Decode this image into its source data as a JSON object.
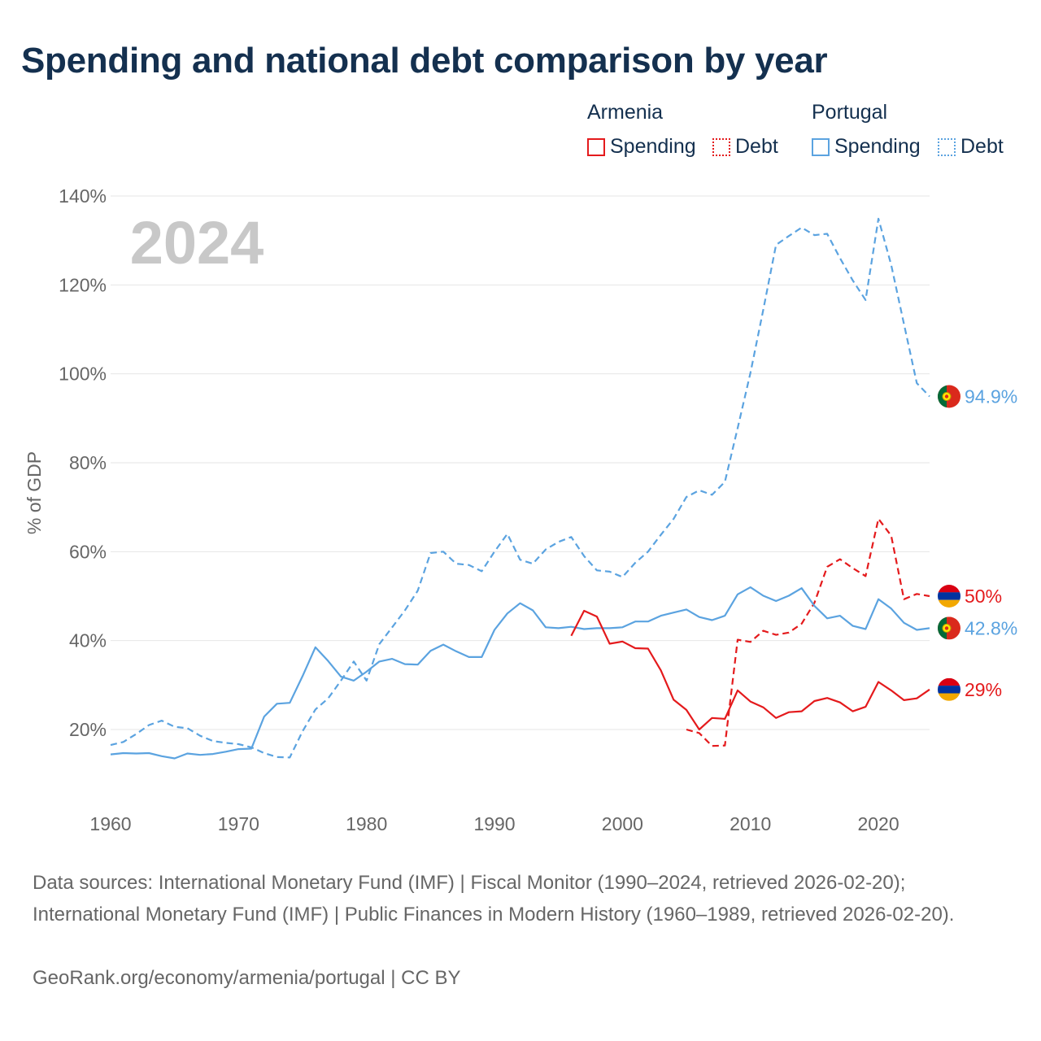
{
  "title": "Spending and national debt comparison by year",
  "legend": {
    "groups": [
      {
        "country": "Armenia",
        "items": [
          {
            "label": "Spending",
            "style": "solid"
          },
          {
            "label": "Debt",
            "style": "dotted"
          }
        ],
        "color": "#e41a1c"
      },
      {
        "country": "Portugal",
        "items": [
          {
            "label": "Spending",
            "style": "solid"
          },
          {
            "label": "Debt",
            "style": "dotted"
          }
        ],
        "color": "#5ba3e0"
      }
    ]
  },
  "year_watermark": "2024",
  "colors": {
    "armenia": "#e41a1c",
    "portugal": "#5ba3e0",
    "grid": "#e6e6e6",
    "axis_text": "#666666",
    "title": "#14304f",
    "watermark": "#c8c8c8"
  },
  "end_labels": {
    "portugal_debt": "94.9%",
    "armenia_debt": "50%",
    "portugal_spending": "42.8%",
    "armenia_spending": "29%"
  },
  "sources": "Data sources: International Monetary Fund (IMF) | Fiscal Monitor (1990–2024, retrieved 2026-02-20); International Monetary Fund (IMF) | Public Finances in Modern History (1960–1989, retrieved 2026-02-20).",
  "footer": "GeoRank.org/economy/armenia/portugal | CC BY",
  "chart_data": {
    "type": "line",
    "title": "Spending and national debt comparison by year",
    "xlabel": "",
    "ylabel": "% of GDP",
    "xlim": [
      1960,
      2024
    ],
    "ylim": [
      6,
      140
    ],
    "x_ticks": [
      1960,
      1970,
      1980,
      1990,
      2000,
      2010,
      2020
    ],
    "x_tick_labels": [
      "1960",
      "1970",
      "1980",
      "1990",
      "2000",
      "2010",
      "2020"
    ],
    "y_ticks": [
      20,
      40,
      60,
      80,
      100,
      120,
      140
    ],
    "y_tick_labels": [
      "20%",
      "40%",
      "60%",
      "80%",
      "100%",
      "120%",
      "140%"
    ],
    "series": [
      {
        "name": "Portugal Debt",
        "country": "Portugal",
        "metric": "Debt",
        "style": "dashed",
        "color": "#5ba3e0",
        "x": [
          1960,
          1961,
          1962,
          1963,
          1964,
          1965,
          1966,
          1967,
          1968,
          1969,
          1970,
          1971,
          1972,
          1973,
          1974,
          1975,
          1976,
          1977,
          1978,
          1979,
          1980,
          1981,
          1982,
          1983,
          1984,
          1985,
          1986,
          1987,
          1988,
          1989,
          1990,
          1991,
          1992,
          1993,
          1994,
          1995,
          1996,
          1997,
          1998,
          1999,
          2000,
          2001,
          2002,
          2003,
          2004,
          2005,
          2006,
          2007,
          2008,
          2009,
          2010,
          2011,
          2012,
          2013,
          2014,
          2015,
          2016,
          2017,
          2018,
          2019,
          2020,
          2021,
          2022,
          2023,
          2024
        ],
        "values": [
          16.5,
          17.2,
          19,
          21,
          22,
          20.6,
          20.3,
          18.6,
          17.4,
          17,
          16.7,
          16,
          14.7,
          13.8,
          13.7,
          19.6,
          24.5,
          27,
          31,
          35.3,
          31,
          39.2,
          43,
          46.8,
          51.2,
          59.7,
          60,
          57.3,
          57,
          55.6,
          60,
          64,
          58.2,
          57.3,
          60.5,
          62.2,
          63.3,
          59,
          55.8,
          55.5,
          54.3,
          57.5,
          60,
          63.8,
          67.4,
          72.3,
          73.8,
          72.8,
          75.7,
          87.8,
          100.2,
          114.4,
          129,
          131,
          132.9,
          131.2,
          131.5,
          126,
          121,
          116.6,
          134.9,
          124.5,
          111.2,
          97.9,
          94.9
        ]
      },
      {
        "name": "Armenia Debt",
        "country": "Armenia",
        "metric": "Debt",
        "style": "dashed",
        "color": "#e41a1c",
        "x": [
          2005,
          2006,
          2007,
          2008,
          2009,
          2010,
          2011,
          2012,
          2013,
          2014,
          2015,
          2016,
          2017,
          2018,
          2019,
          2020,
          2021,
          2022,
          2023,
          2024
        ],
        "values": [
          20,
          19.2,
          16.3,
          16.4,
          40.2,
          39.7,
          42.2,
          41.3,
          41.8,
          43.8,
          48.5,
          56.6,
          58.3,
          56.3,
          54.5,
          67.4,
          63.6,
          49.3,
          50.5,
          50
        ]
      },
      {
        "name": "Portugal Spending",
        "country": "Portugal",
        "metric": "Spending",
        "style": "solid",
        "color": "#5ba3e0",
        "x": [
          1960,
          1961,
          1962,
          1963,
          1964,
          1965,
          1966,
          1967,
          1968,
          1969,
          1970,
          1971,
          1972,
          1973,
          1974,
          1975,
          1976,
          1977,
          1978,
          1979,
          1980,
          1981,
          1982,
          1983,
          1984,
          1985,
          1986,
          1987,
          1988,
          1989,
          1990,
          1991,
          1992,
          1993,
          1994,
          1995,
          1996,
          1997,
          1998,
          1999,
          2000,
          2001,
          2002,
          2003,
          2004,
          2005,
          2006,
          2007,
          2008,
          2009,
          2010,
          2011,
          2012,
          2013,
          2014,
          2015,
          2016,
          2017,
          2018,
          2019,
          2020,
          2021,
          2022,
          2023,
          2024
        ],
        "values": [
          14.4,
          14.7,
          14.6,
          14.7,
          14,
          13.5,
          14.6,
          14.3,
          14.5,
          15,
          15.6,
          15.7,
          22.9,
          25.8,
          26,
          32,
          38.5,
          35.4,
          31.9,
          31,
          33,
          35.3,
          35.9,
          34.7,
          34.6,
          37.7,
          39.1,
          37.6,
          36.3,
          36.3,
          42.4,
          46.1,
          48.4,
          46.8,
          43,
          42.8,
          43.1,
          42.6,
          42.8,
          42.8,
          43,
          44.3,
          44.3,
          45.6,
          46.3,
          47,
          45.3,
          44.6,
          45.6,
          50.4,
          52,
          50.1,
          48.9,
          50.1,
          51.8,
          47.8,
          45,
          45.6,
          43.3,
          42.6,
          49.3,
          47.2,
          44,
          42.4,
          42.8
        ]
      },
      {
        "name": "Armenia Spending",
        "country": "Armenia",
        "metric": "Spending",
        "style": "solid",
        "color": "#e41a1c",
        "x": [
          1996,
          1997,
          1998,
          1999,
          2000,
          2001,
          2002,
          2003,
          2004,
          2005,
          2006,
          2007,
          2008,
          2009,
          2010,
          2011,
          2012,
          2013,
          2014,
          2015,
          2016,
          2017,
          2018,
          2019,
          2020,
          2021,
          2022,
          2023,
          2024
        ],
        "values": [
          41.1,
          46.7,
          45.4,
          39.3,
          39.8,
          38.3,
          38.2,
          33.3,
          26.7,
          24.4,
          20,
          22.6,
          22.4,
          28.8,
          26.3,
          25,
          22.6,
          23.9,
          24.1,
          26.4,
          27.1,
          26.1,
          24.1,
          25.1,
          30.7,
          28.8,
          26.6,
          27,
          29
        ]
      }
    ]
  }
}
